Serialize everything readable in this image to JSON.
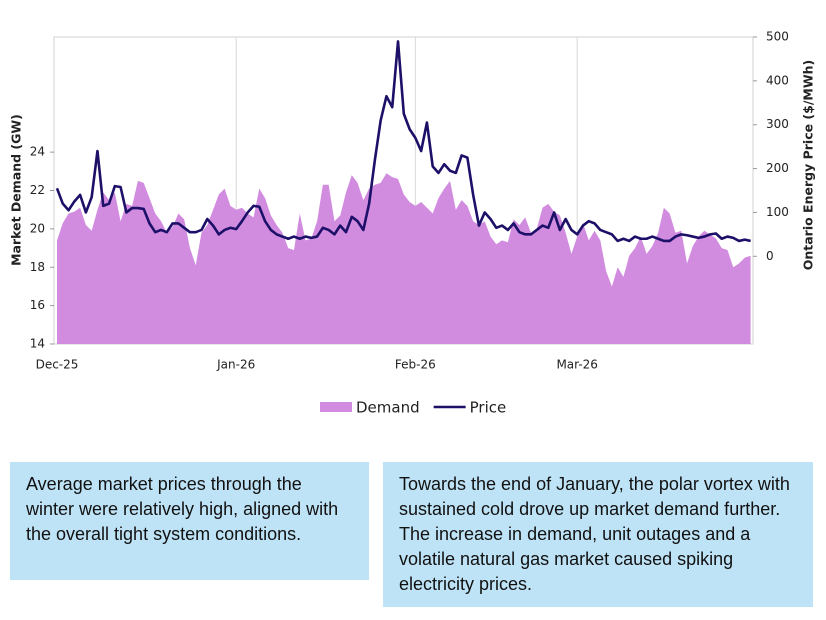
{
  "chart_data": {
    "type": "combo",
    "ylabel": "Market Demand (GW)",
    "y2label": "Ontario Energy Price ($/MWh)",
    "categories": [
      "Dec-25",
      null,
      null,
      null,
      null,
      null,
      null,
      null,
      null,
      null,
      null,
      null,
      null,
      null,
      null,
      null,
      null,
      null,
      null,
      null,
      null,
      null,
      null,
      null,
      null,
      null,
      null,
      null,
      null,
      null,
      null,
      "Jan-26",
      null,
      null,
      null,
      null,
      null,
      null,
      null,
      null,
      null,
      null,
      null,
      null,
      null,
      null,
      null,
      null,
      null,
      null,
      null,
      null,
      null,
      null,
      null,
      null,
      null,
      null,
      null,
      null,
      null,
      null,
      "Feb-26",
      null,
      null,
      null,
      null,
      null,
      null,
      null,
      null,
      null,
      null,
      null,
      null,
      null,
      null,
      null,
      null,
      null,
      null,
      null,
      null,
      null,
      null,
      null,
      null,
      null,
      null,
      null,
      "Mar-26",
      null,
      null,
      null,
      null,
      null,
      null,
      null,
      null,
      null,
      null,
      null,
      null,
      null,
      null,
      null,
      null,
      null,
      null,
      null,
      null,
      null,
      null,
      null,
      null,
      null,
      null,
      null,
      null,
      null,
      null
    ],
    "series": [
      {
        "name": "Demand",
        "type": "area",
        "color": "#d18ce0",
        "values": [
          19.4,
          20.3,
          20.8,
          20.9,
          21.1,
          20.2,
          19.9,
          21.0,
          21.9,
          21.5,
          21.9,
          20.4,
          21.3,
          21.2,
          22.5,
          22.4,
          21.6,
          20.8,
          20.4,
          19.8,
          20.1,
          20.8,
          20.5,
          19.0,
          18.1,
          19.8,
          20.2,
          21.0,
          21.8,
          22.1,
          21.2,
          21.0,
          21.1,
          20.8,
          20.6,
          22.1,
          21.6,
          20.7,
          20.2,
          19.8,
          19.0,
          18.9,
          20.8,
          19.4,
          19.5,
          20.4,
          22.3,
          22.3,
          20.4,
          20.7,
          21.9,
          22.8,
          22.4,
          21.5,
          22.1,
          22.3,
          22.4,
          22.9,
          22.7,
          22.6,
          21.8,
          21.4,
          21.2,
          21.4,
          21.1,
          20.8,
          21.6,
          22.1,
          22.5,
          21.0,
          21.5,
          21.2,
          20.4,
          20.2,
          20.4,
          19.6,
          19.2,
          19.4,
          19.3,
          20.5,
          20.2,
          20.6,
          19.8,
          20.0,
          21.1,
          21.3,
          20.9,
          20.7,
          19.8,
          18.7,
          19.6,
          20.3,
          19.4,
          19.9,
          19.4,
          17.8,
          17.0,
          18.0,
          17.5,
          18.6,
          19.0,
          19.6,
          18.7,
          19.1,
          19.8,
          21.1,
          20.8,
          19.8,
          19.9,
          18.2,
          19.1,
          19.6,
          19.9,
          19.7,
          19.5,
          19.0,
          18.9,
          18.0,
          18.2,
          18.5,
          18.6
        ]
      },
      {
        "name": "Price",
        "type": "line",
        "axis": "y2",
        "color": "#1c1068",
        "values": [
          155,
          120,
          105,
          125,
          140,
          100,
          135,
          240,
          115,
          120,
          160,
          158,
          100,
          110,
          110,
          108,
          75,
          55,
          60,
          55,
          75,
          75,
          65,
          55,
          55,
          60,
          85,
          70,
          50,
          60,
          65,
          62,
          80,
          100,
          115,
          113,
          80,
          60,
          50,
          45,
          40,
          45,
          40,
          45,
          42,
          45,
          65,
          60,
          50,
          70,
          55,
          90,
          80,
          60,
          120,
          220,
          310,
          365,
          340,
          490,
          325,
          290,
          270,
          240,
          305,
          205,
          190,
          210,
          195,
          190,
          230,
          225,
          140,
          70,
          100,
          85,
          65,
          70,
          60,
          75,
          55,
          50,
          50,
          60,
          70,
          65,
          100,
          60,
          85,
          60,
          50,
          70,
          80,
          75,
          60,
          55,
          50,
          35,
          40,
          35,
          45,
          40,
          40,
          45,
          40,
          35,
          35,
          45,
          50,
          48,
          45,
          42,
          45,
          50,
          52,
          40,
          45,
          42,
          35,
          38,
          35
        ]
      }
    ],
    "ylim": [
      14,
      30
    ],
    "yticks": [
      14,
      16,
      18,
      20,
      22,
      24
    ],
    "y2lim": [
      -200,
      500
    ],
    "y2ticks": [
      0,
      100,
      200,
      300,
      400,
      500
    ],
    "xgrid": true,
    "legend": "bottom"
  },
  "notes": [
    "Average market prices through the winter were relatively high, aligned with the overall tight system conditions.",
    "Towards the end of January, the polar vortex with sustained cold drove up market demand further. The increase in demand, unit outages and a volatile natural gas market caused spiking electricity prices."
  ]
}
